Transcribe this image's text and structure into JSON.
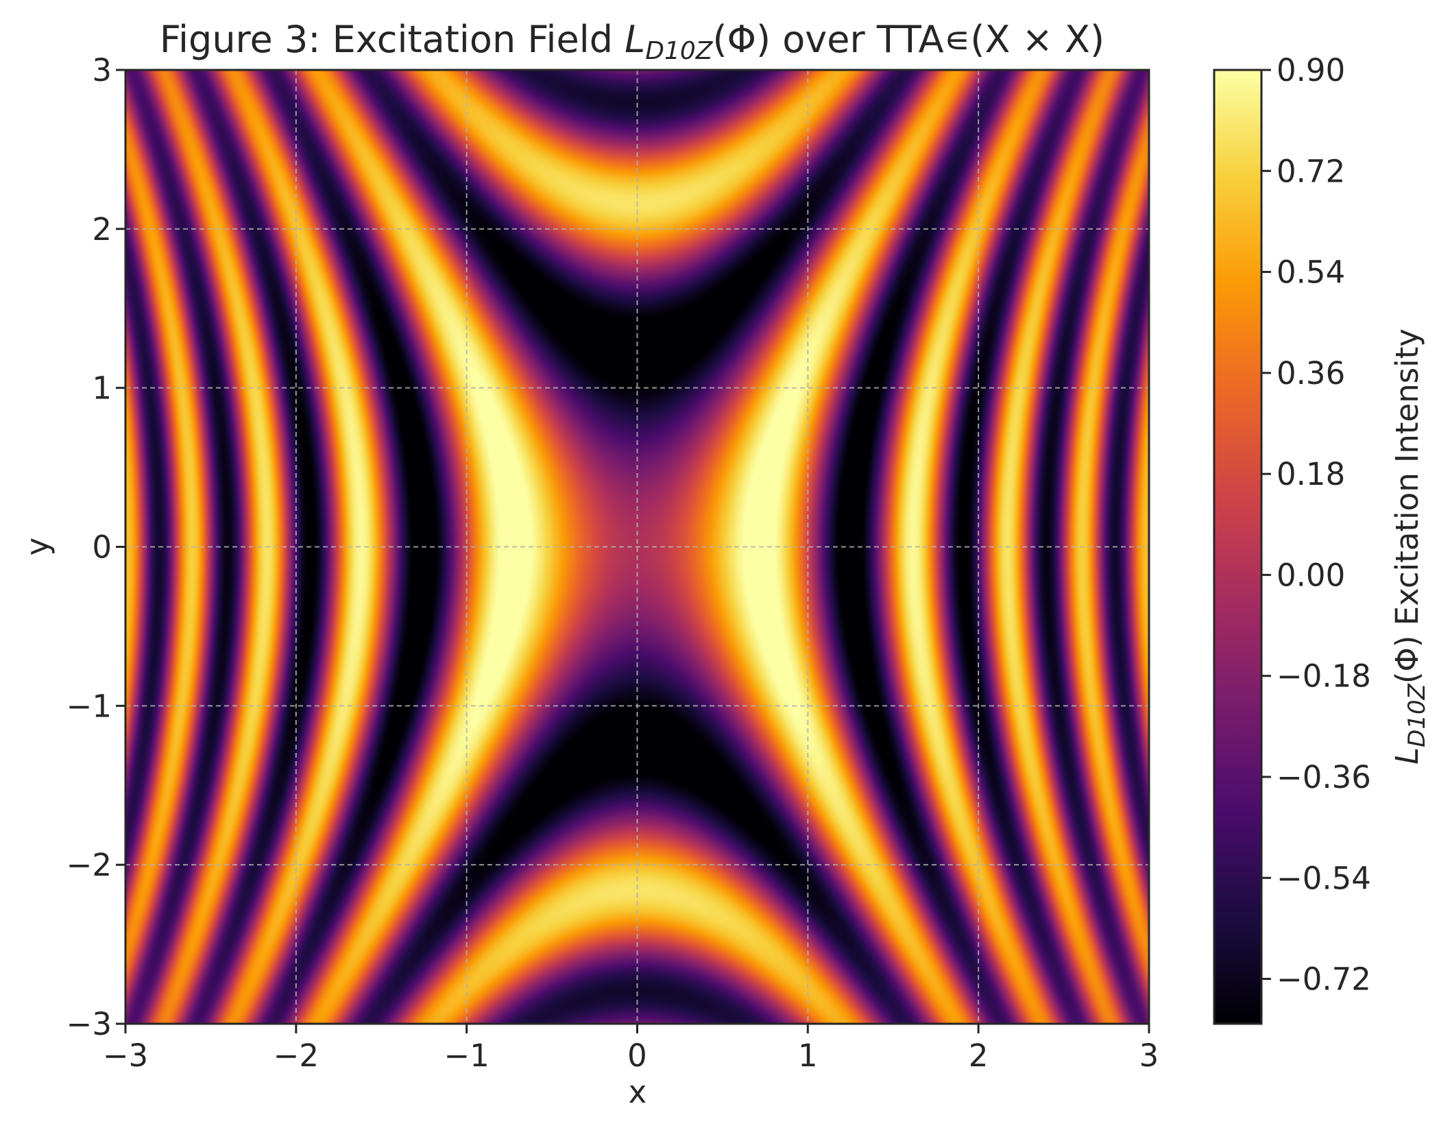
{
  "chart_data": {
    "type": "heatmap",
    "title": "Figure 3: Excitation Field L_D10Z(Φ) over TTA∊(X × X)",
    "title_parts": {
      "prefix": "Figure 3: Excitation Field ",
      "symbol": "L",
      "subscript": "D10Z",
      "suffix": "(Φ) over TTA∊(X × X)"
    },
    "xlabel": "x",
    "ylabel": "y",
    "xlim": [
      -3,
      3
    ],
    "ylim": [
      -3,
      3
    ],
    "xticks": [
      -3,
      -2,
      -1,
      0,
      1,
      2,
      3
    ],
    "yticks": [
      -3,
      -2,
      -1,
      0,
      1,
      2,
      3
    ],
    "xtick_labels": [
      "−3",
      "−2",
      "−1",
      "0",
      "1",
      "2",
      "3"
    ],
    "ytick_labels": [
      "−3",
      "−2",
      "−1",
      "0",
      "1",
      "2",
      "3"
    ],
    "grid": true,
    "colormap": "inferno",
    "colormap_stops": [
      "#000004",
      "#1b0c41",
      "#4a0c6b",
      "#781c6d",
      "#a52c60",
      "#cf4446",
      "#ed6925",
      "#fb9b06",
      "#f7d13d",
      "#fcffa4"
    ],
    "field": {
      "expression": "sin(3x^2 - y^2) * exp(-0.05(x^2 + y^2))",
      "value_range": [
        -0.8,
        0.9
      ]
    },
    "colorbar": {
      "label_symbol": "L",
      "label_subscript": "D10Z",
      "label_suffix": "(Φ) Excitation Intensity",
      "ticks": [
        0.9,
        0.72,
        0.54,
        0.36,
        0.18,
        0.0,
        -0.18,
        -0.36,
        -0.54,
        -0.72
      ],
      "tick_labels": [
        "0.90",
        "0.72",
        "0.54",
        "0.36",
        "0.18",
        "0.00",
        "−0.18",
        "−0.36",
        "−0.54",
        "−0.72"
      ],
      "vmin": -0.8,
      "vmax": 0.9
    }
  }
}
